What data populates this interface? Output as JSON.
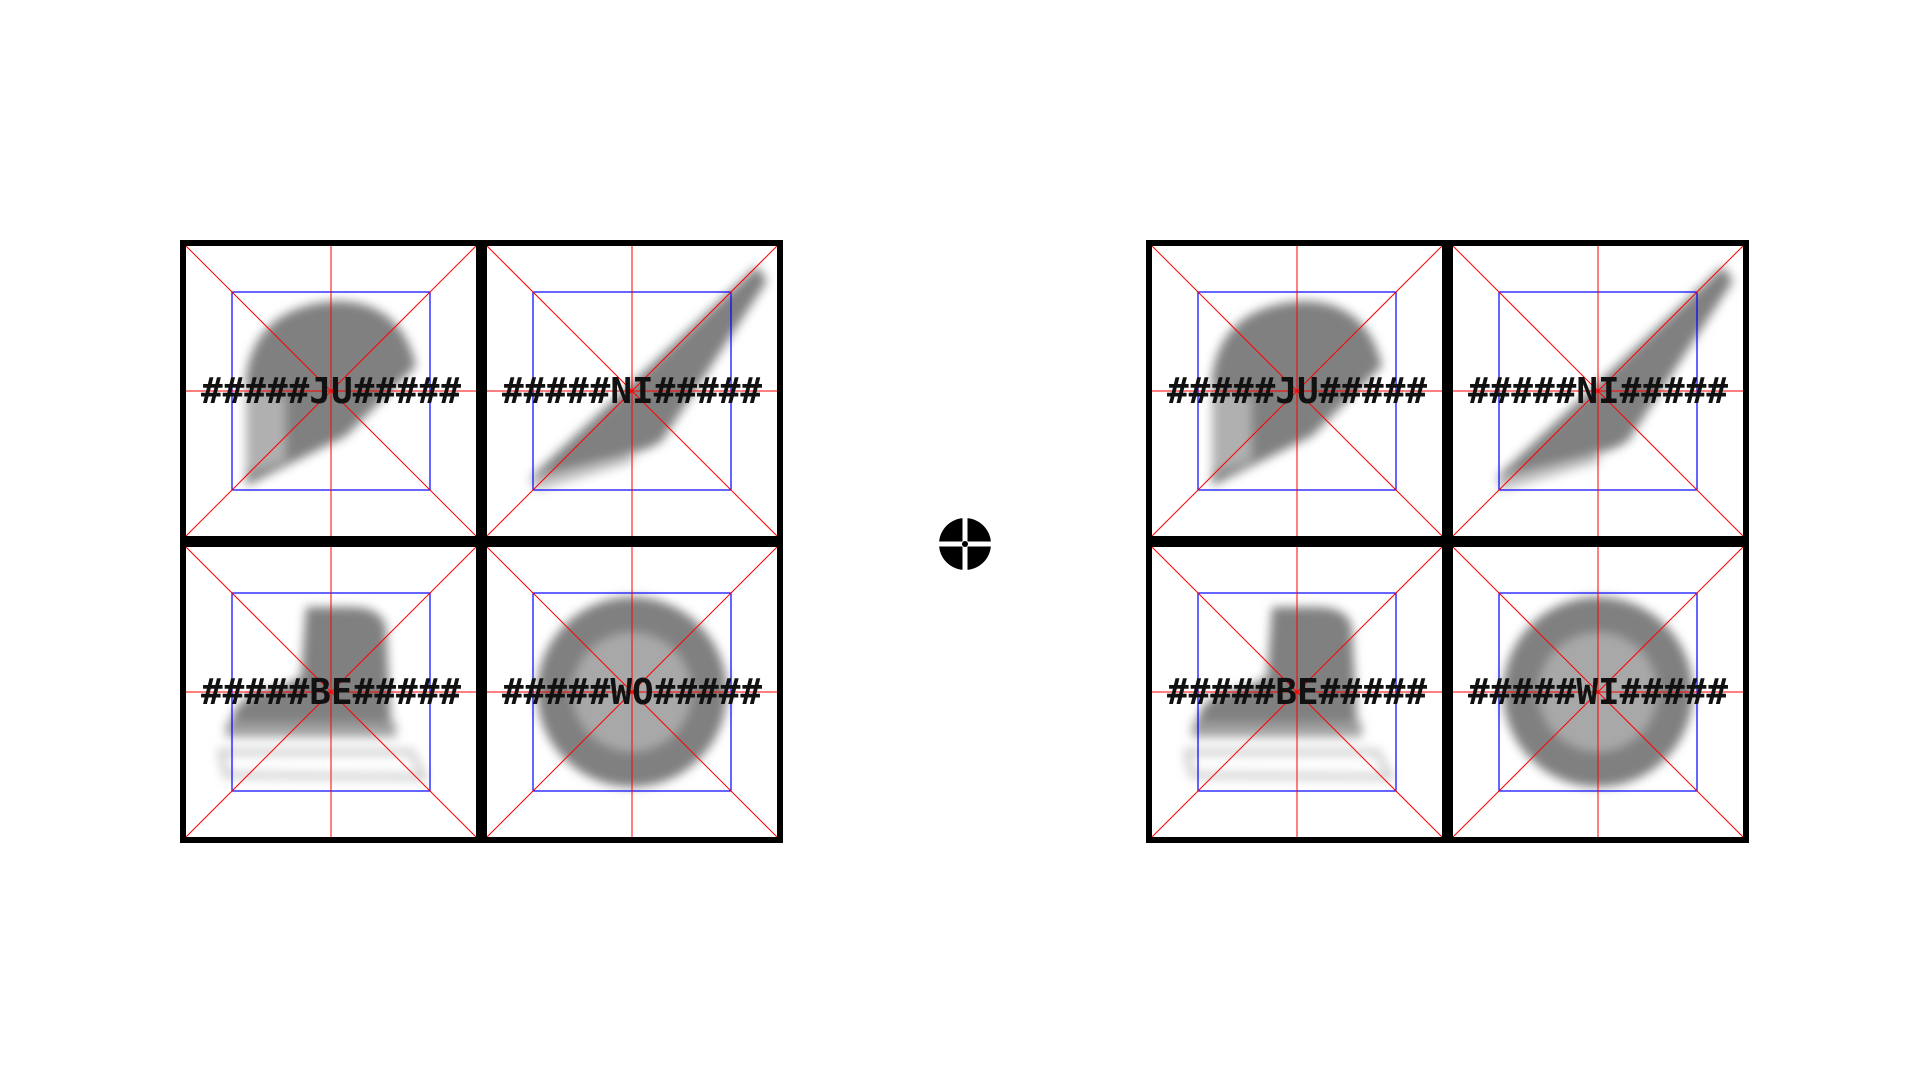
{
  "panels": [
    {
      "side": "left",
      "cells": [
        {
          "icon": "helmet-icon",
          "lines": [
            "####",
            "#JU#",
            "####"
          ]
        },
        {
          "icon": "hockey-stick-icon",
          "lines": [
            "####",
            "#NI#",
            "####"
          ]
        },
        {
          "icon": "ice-skate-icon",
          "lines": [
            "####",
            "#BE#",
            "####"
          ]
        },
        {
          "icon": "puck-icon",
          "lines": [
            "####",
            "#WO#",
            "####"
          ]
        }
      ]
    },
    {
      "side": "right",
      "cells": [
        {
          "icon": "helmet-icon",
          "lines": [
            "####",
            "#JU#",
            "####"
          ]
        },
        {
          "icon": "hockey-stick-icon",
          "lines": [
            "####",
            "#NI#",
            "####"
          ]
        },
        {
          "icon": "ice-skate-icon",
          "lines": [
            "####",
            "#BE#",
            "####"
          ]
        },
        {
          "icon": "puck-icon",
          "lines": [
            "####",
            "#WI#",
            "####"
          ]
        }
      ]
    }
  ],
  "fixation": {
    "icon": "fixation-cross-icon"
  },
  "colors": {
    "frame": "#000000",
    "guide_red": "#ff0000",
    "guide_blue": "#0000ff",
    "icon_gray": "#808080"
  }
}
